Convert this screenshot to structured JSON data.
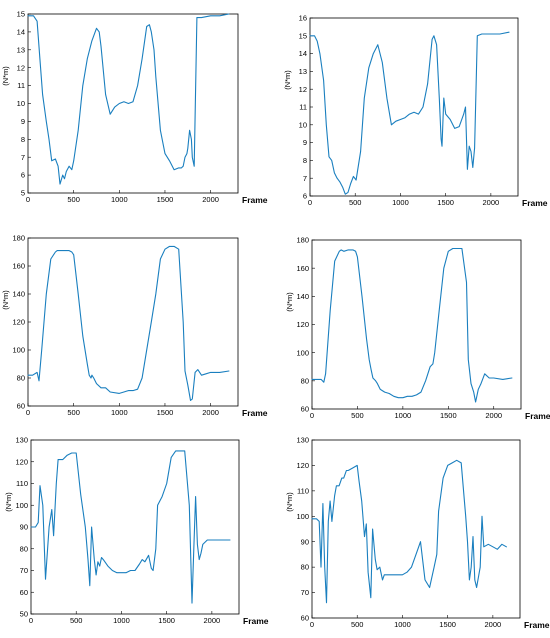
{
  "colors": {
    "series": "#1a7fbf",
    "axis": "#000000"
  },
  "chart_data": [
    {
      "type": "line",
      "xlabel": "Frame",
      "ylabel": "(N*m)",
      "xlim": [
        0,
        2300
      ],
      "ylim": [
        5,
        15
      ],
      "xticks": [
        0,
        500,
        1000,
        1500,
        2000
      ],
      "yticks": [
        5,
        6,
        7,
        8,
        9,
        10,
        11,
        12,
        13,
        14,
        15
      ],
      "grid": false,
      "series": [
        {
          "x": [
            0,
            60,
            100,
            130,
            160,
            200,
            230,
            260,
            300,
            330,
            350,
            380,
            400,
            420,
            450,
            480,
            500,
            550,
            600,
            650,
            700,
            750,
            780,
            800,
            850,
            900,
            950,
            1000,
            1050,
            1100,
            1150,
            1200,
            1250,
            1300,
            1330,
            1350,
            1380,
            1400,
            1450,
            1500,
            1550,
            1600,
            1650,
            1680,
            1700,
            1720,
            1740,
            1750,
            1770,
            1790,
            1800,
            1820,
            1850,
            1900,
            2000,
            2100,
            2200
          ],
          "y": [
            14.9,
            14.9,
            14.6,
            12.5,
            10.5,
            9,
            8,
            6.8,
            6.9,
            6.5,
            5.5,
            6,
            5.8,
            6.2,
            6.5,
            6.3,
            6.8,
            8.5,
            11,
            12.5,
            13.5,
            14.2,
            14,
            13.2,
            10.5,
            9.4,
            9.8,
            10,
            10.1,
            10,
            10.1,
            11,
            12.5,
            14.3,
            14.4,
            14,
            13,
            11.5,
            8.5,
            7.2,
            6.8,
            6.3,
            6.4,
            6.4,
            6.5,
            7,
            7.2,
            7.5,
            8.5,
            8,
            7,
            6.5,
            14.8,
            14.8,
            14.9,
            14.9,
            15
          ]
        }
      ]
    },
    {
      "type": "line",
      "xlabel": "Frame",
      "ylabel": "(N*m)",
      "xlim": [
        0,
        2300
      ],
      "ylim": [
        6,
        16
      ],
      "xticks": [
        0,
        500,
        1000,
        1500,
        2000
      ],
      "yticks": [
        6,
        7,
        8,
        9,
        10,
        11,
        12,
        13,
        14,
        15,
        16
      ],
      "grid": false,
      "series": [
        {
          "x": [
            0,
            50,
            80,
            110,
            150,
            180,
            210,
            240,
            270,
            300,
            330,
            360,
            390,
            420,
            450,
            480,
            510,
            560,
            600,
            650,
            700,
            750,
            800,
            850,
            900,
            950,
            1000,
            1050,
            1100,
            1150,
            1200,
            1250,
            1300,
            1350,
            1370,
            1400,
            1430,
            1450,
            1460,
            1480,
            1500,
            1550,
            1600,
            1650,
            1700,
            1720,
            1740,
            1760,
            1780,
            1800,
            1820,
            1850,
            1900,
            2000,
            2100,
            2200
          ],
          "y": [
            15,
            15,
            14.7,
            14,
            12.5,
            10,
            8.2,
            8,
            7.3,
            7,
            6.8,
            6.5,
            6.1,
            6.2,
            6.7,
            7.1,
            6.9,
            8.5,
            11.5,
            13.2,
            14,
            14.5,
            13.5,
            11.5,
            10,
            10.2,
            10.3,
            10.4,
            10.6,
            10.7,
            10.6,
            11,
            12.3,
            14.8,
            15,
            14.5,
            11.5,
            9.2,
            8.8,
            11.5,
            10.6,
            10.3,
            9.8,
            9.9,
            10.6,
            11,
            7.5,
            8.8,
            8.5,
            7.6,
            8.7,
            15,
            15.1,
            15.1,
            15.1,
            15.2
          ]
        }
      ]
    },
    {
      "type": "line",
      "xlabel": "Frame",
      "ylabel": "(N*m)",
      "xlim": [
        0,
        2300
      ],
      "ylim": [
        60,
        180
      ],
      "xticks": [
        0,
        500,
        1000,
        1500,
        2000
      ],
      "yticks": [
        60,
        80,
        100,
        120,
        140,
        160,
        180
      ],
      "grid": false,
      "series": [
        {
          "x": [
            0,
            50,
            100,
            120,
            150,
            200,
            250,
            300,
            320,
            350,
            400,
            450,
            480,
            500,
            550,
            600,
            650,
            670,
            690,
            700,
            720,
            750,
            800,
            850,
            900,
            1000,
            1050,
            1100,
            1150,
            1200,
            1250,
            1300,
            1350,
            1400,
            1450,
            1500,
            1550,
            1600,
            1650,
            1700,
            1720,
            1750,
            1780,
            1800,
            1830,
            1860,
            1900,
            1950,
            2000,
            2100,
            2200
          ],
          "y": [
            82,
            82,
            84,
            78,
            100,
            140,
            165,
            170,
            171,
            171,
            171,
            171,
            170,
            168,
            140,
            110,
            90,
            82,
            80,
            82,
            80,
            76,
            73,
            73,
            70,
            69,
            70,
            71,
            71,
            72,
            80,
            100,
            120,
            140,
            165,
            172,
            174,
            174,
            172,
            120,
            85,
            75,
            64,
            65,
            84,
            86,
            82,
            83,
            84,
            84,
            85
          ]
        }
      ]
    },
    {
      "type": "line",
      "xlabel": "Frame",
      "ylabel": "(N*m)",
      "xlim": [
        0,
        2300
      ],
      "ylim": [
        60,
        180
      ],
      "xticks": [
        0,
        500,
        1000,
        1500,
        2000
      ],
      "yticks": [
        60,
        80,
        100,
        120,
        140,
        160,
        180
      ],
      "grid": false,
      "series": [
        {
          "x": [
            0,
            50,
            100,
            130,
            150,
            200,
            250,
            300,
            320,
            350,
            400,
            450,
            480,
            500,
            550,
            600,
            630,
            650,
            670,
            700,
            720,
            750,
            800,
            850,
            900,
            950,
            1000,
            1050,
            1100,
            1150,
            1200,
            1250,
            1300,
            1330,
            1350,
            1400,
            1450,
            1500,
            1550,
            1600,
            1650,
            1700,
            1720,
            1750,
            1780,
            1800,
            1830,
            1860,
            1900,
            1950,
            2000,
            2100,
            2200
          ],
          "y": [
            81,
            81,
            81,
            79,
            85,
            130,
            165,
            172,
            173,
            172,
            173,
            173,
            172,
            168,
            140,
            110,
            95,
            88,
            82,
            80,
            78,
            74,
            72,
            71,
            69,
            68,
            68,
            69,
            69,
            70,
            72,
            80,
            90,
            92,
            100,
            130,
            160,
            172,
            174,
            174,
            174,
            150,
            95,
            78,
            72,
            65,
            74,
            78,
            85,
            82,
            82,
            81,
            82
          ]
        }
      ]
    },
    {
      "type": "line",
      "xlabel": "Frame",
      "ylabel": "(N*m)",
      "xlim": [
        0,
        2300
      ],
      "ylim": [
        50,
        130
      ],
      "xticks": [
        0,
        500,
        1000,
        1500,
        2000
      ],
      "yticks": [
        50,
        60,
        70,
        80,
        90,
        100,
        110,
        120,
        130
      ],
      "grid": false,
      "series": [
        {
          "x": [
            0,
            50,
            80,
            100,
            130,
            160,
            200,
            230,
            250,
            280,
            300,
            350,
            400,
            450,
            500,
            550,
            600,
            630,
            650,
            670,
            700,
            720,
            740,
            760,
            780,
            800,
            850,
            900,
            950,
            1000,
            1050,
            1100,
            1150,
            1200,
            1230,
            1260,
            1300,
            1330,
            1350,
            1380,
            1400,
            1450,
            1500,
            1550,
            1600,
            1650,
            1700,
            1750,
            1780,
            1800,
            1820,
            1840,
            1860,
            1880,
            1900,
            1950,
            2000,
            2100,
            2200
          ],
          "y": [
            90,
            90,
            92,
            109,
            100,
            66,
            90,
            98,
            86,
            110,
            121,
            121,
            123,
            124,
            124,
            105,
            90,
            75,
            63,
            90,
            75,
            68,
            74,
            72,
            76,
            75,
            72,
            70,
            69,
            69,
            69,
            70,
            70,
            73,
            75,
            74,
            77,
            71,
            70,
            80,
            100,
            104,
            110,
            122,
            125,
            125,
            125,
            100,
            55,
            80,
            104,
            82,
            75,
            78,
            82,
            84,
            84,
            84,
            84
          ]
        }
      ]
    },
    {
      "type": "line",
      "xlabel": "Frame",
      "ylabel": "(N*m)",
      "xlim": [
        0,
        2300
      ],
      "ylim": [
        60,
        130
      ],
      "xticks": [
        0,
        500,
        1000,
        1500,
        2000
      ],
      "yticks": [
        60,
        70,
        80,
        90,
        100,
        110,
        120,
        130
      ],
      "grid": false,
      "series": [
        {
          "x": [
            0,
            50,
            80,
            100,
            120,
            140,
            160,
            180,
            200,
            220,
            250,
            270,
            300,
            330,
            350,
            380,
            400,
            450,
            500,
            520,
            550,
            580,
            600,
            620,
            650,
            670,
            700,
            720,
            750,
            780,
            800,
            850,
            900,
            950,
            1000,
            1050,
            1100,
            1150,
            1200,
            1250,
            1300,
            1350,
            1380,
            1400,
            1450,
            1500,
            1550,
            1600,
            1650,
            1700,
            1720,
            1740,
            1760,
            1780,
            1800,
            1820,
            1840,
            1860,
            1880,
            1900,
            1950,
            2000,
            2050,
            2100,
            2150
          ],
          "y": [
            99,
            99,
            98,
            80,
            105,
            80,
            66,
            98,
            106,
            98,
            108,
            112,
            112,
            115,
            115,
            118,
            118,
            119,
            120,
            114,
            106,
            92,
            97,
            78,
            68,
            95,
            83,
            79,
            80,
            75,
            77,
            77,
            77,
            77,
            77,
            78,
            80,
            85,
            90,
            75,
            72,
            80,
            85,
            102,
            115,
            120,
            121,
            122,
            121,
            100,
            90,
            75,
            80,
            92,
            75,
            72,
            76,
            80,
            100,
            88,
            89,
            88,
            87,
            89,
            88
          ]
        }
      ]
    }
  ]
}
